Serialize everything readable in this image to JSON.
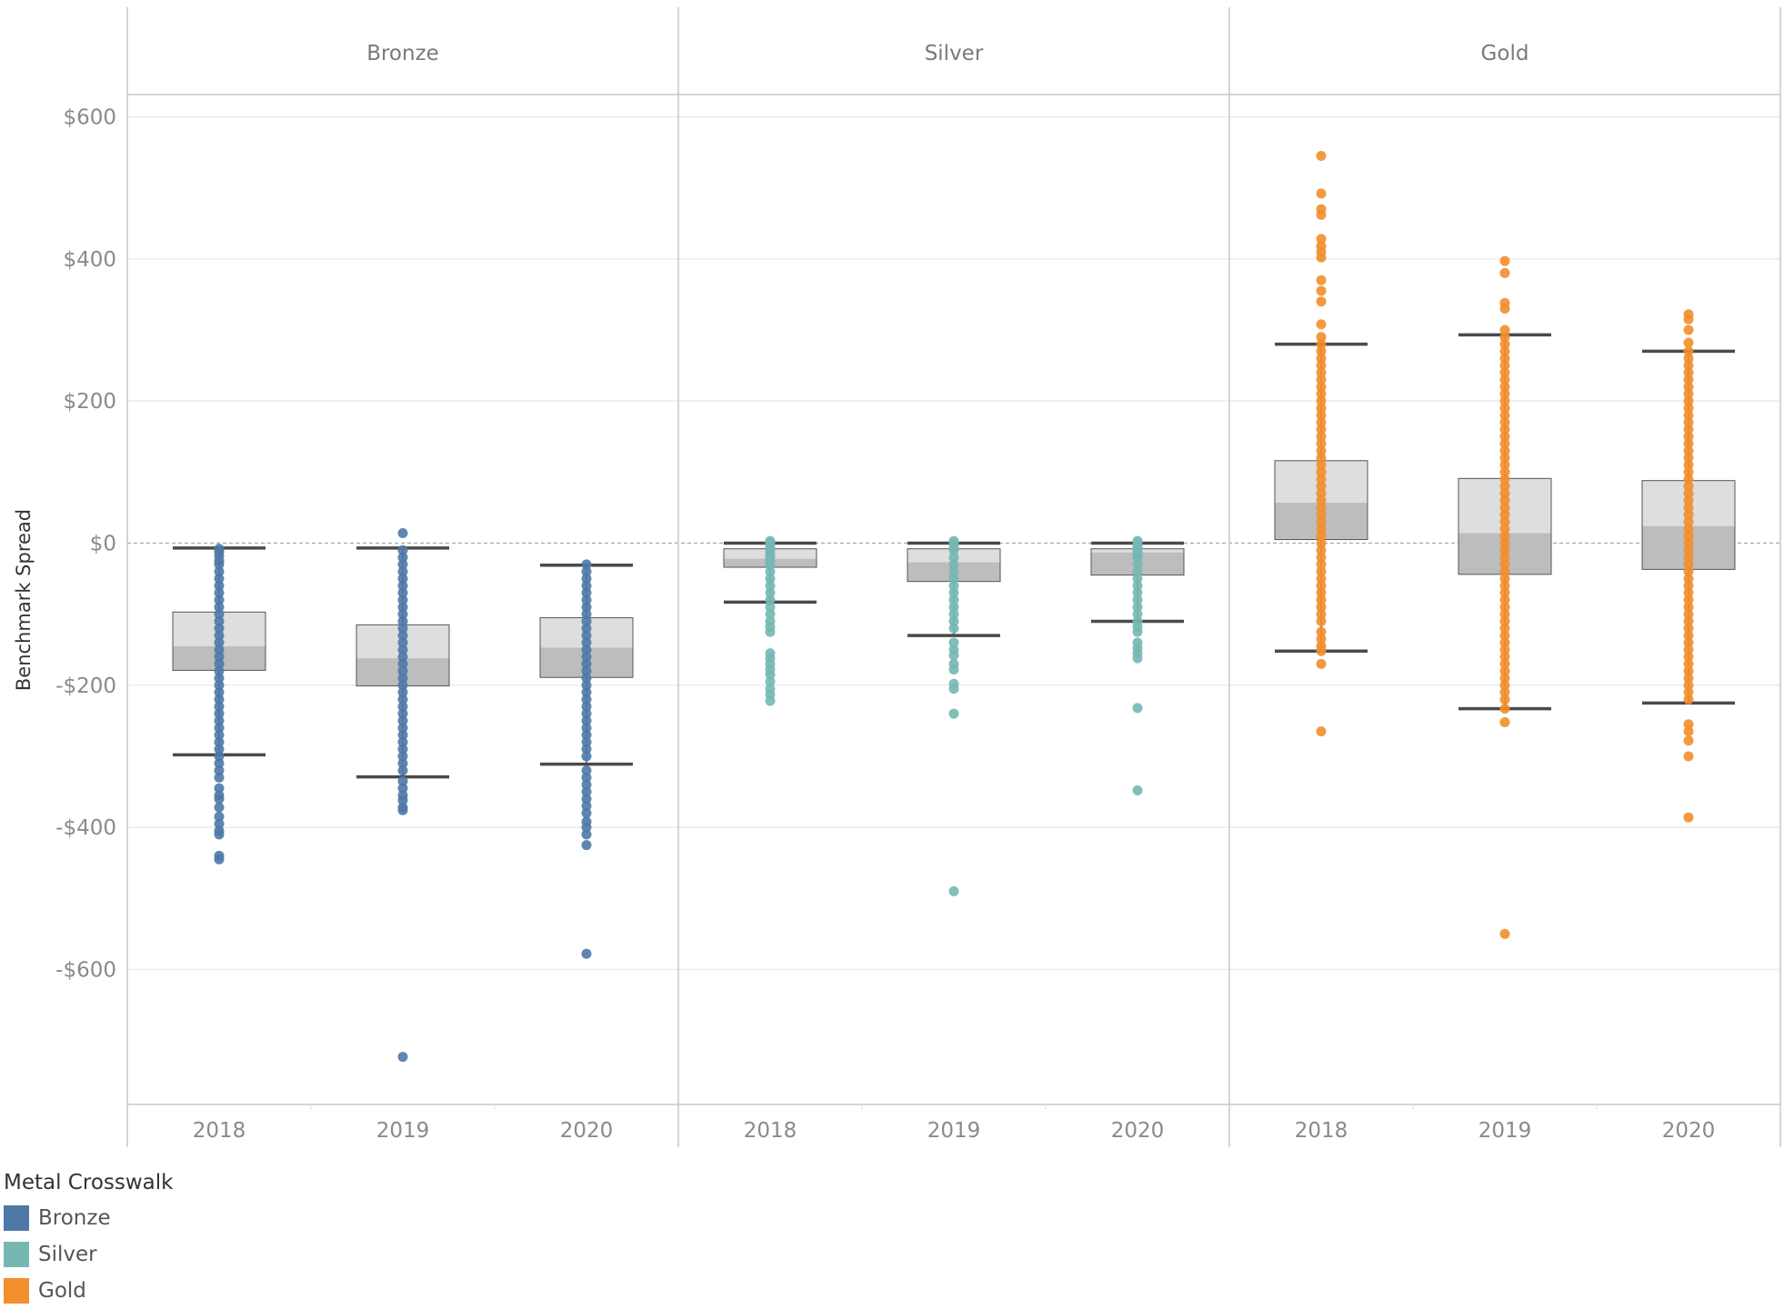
{
  "chart_data": {
    "type": "box",
    "ylabel": "Benchmark Spread",
    "ylim": [
      -790,
      630
    ],
    "y_ticks": [
      {
        "value": 600,
        "label": "$600"
      },
      {
        "value": 400,
        "label": "$400"
      },
      {
        "value": 200,
        "label": "$200"
      },
      {
        "value": 0,
        "label": "$0"
      },
      {
        "value": -200,
        "label": "-$200"
      },
      {
        "value": -400,
        "label": "-$400"
      },
      {
        "value": -600,
        "label": "-$600"
      }
    ],
    "grid": true,
    "reference_line": 0,
    "legend": {
      "title": "Metal Crosswalk",
      "position": "bottom-left",
      "items": [
        {
          "label": "Bronze",
          "color": "#4e79a7"
        },
        {
          "label": "Silver",
          "color": "#76b7b2"
        },
        {
          "label": "Gold",
          "color": "#f28e2b"
        }
      ]
    },
    "panels": [
      {
        "title": "Bronze",
        "color": "#4e79a7",
        "categories": [
          "2018",
          "2019",
          "2020"
        ],
        "boxes": [
          {
            "whisker_high": -7,
            "q3": -97,
            "median": -145,
            "q1": -179,
            "whisker_low": -298,
            "points": [
              -8,
              -12,
              -18,
              -25,
              -30,
              -40,
              -50,
              -60,
              -70,
              -80,
              -90,
              -100,
              -110,
              -120,
              -130,
              -140,
              -150,
              -160,
              -170,
              -180,
              -190,
              -200,
              -210,
              -220,
              -230,
              -240,
              -250,
              -260,
              -270,
              -280,
              -290,
              -300,
              -310,
              -320,
              -330,
              -345,
              -355,
              -360,
              -372,
              -385,
              -395,
              -405,
              -410,
              -440,
              -445
            ]
          },
          {
            "whisker_high": -7,
            "q3": -115,
            "median": -162,
            "q1": -201,
            "whisker_low": -329,
            "points": [
              14,
              -10,
              -20,
              -30,
              -40,
              -50,
              -60,
              -70,
              -80,
              -90,
              -100,
              -110,
              -120,
              -130,
              -140,
              -150,
              -160,
              -170,
              -180,
              -190,
              -200,
              -210,
              -220,
              -230,
              -240,
              -250,
              -260,
              -270,
              -280,
              -290,
              -300,
              -310,
              -320,
              -335,
              -345,
              -355,
              -362,
              -372,
              -376,
              -723
            ]
          },
          {
            "whisker_high": -31,
            "q3": -105,
            "median": -147,
            "q1": -189,
            "whisker_low": -311,
            "points": [
              -30,
              -40,
              -50,
              -60,
              -70,
              -80,
              -90,
              -100,
              -110,
              -120,
              -130,
              -140,
              -150,
              -160,
              -170,
              -180,
              -190,
              -200,
              -210,
              -220,
              -230,
              -240,
              -250,
              -260,
              -270,
              -280,
              -290,
              -300,
              -320,
              -330,
              -340,
              -350,
              -360,
              -370,
              -380,
              -392,
              -400,
              -410,
              -425,
              -578
            ]
          }
        ]
      },
      {
        "title": "Silver",
        "color": "#76b7b2",
        "categories": [
          "2018",
          "2019",
          "2020"
        ],
        "boxes": [
          {
            "whisker_high": 0,
            "q3": -8,
            "median": -22,
            "q1": -34,
            "whisker_low": -83,
            "points": [
              3,
              0,
              -5,
              -10,
              -15,
              -20,
              -25,
              -30,
              -40,
              -50,
              -60,
              -70,
              -80,
              -90,
              -100,
              -110,
              -118,
              -125,
              -155,
              -162,
              -170,
              -178,
              -185,
              -195,
              -205,
              -213,
              -222
            ]
          },
          {
            "whisker_high": 0,
            "q3": -8,
            "median": -27,
            "q1": -54,
            "whisker_low": -130,
            "points": [
              3,
              0,
              -5,
              -10,
              -20,
              -30,
              -40,
              -50,
              -60,
              -70,
              -80,
              -90,
              -100,
              -110,
              -120,
              -140,
              -150,
              -158,
              -170,
              -178,
              -198,
              -205,
              -240,
              -490
            ]
          },
          {
            "whisker_high": 0,
            "q3": -8,
            "median": -13,
            "q1": -45,
            "whisker_low": -110,
            "points": [
              3,
              0,
              -5,
              -10,
              -15,
              -20,
              -30,
              -40,
              -50,
              -60,
              -70,
              -80,
              -90,
              -100,
              -110,
              -118,
              -125,
              -140,
              -148,
              -155,
              -162,
              -232,
              -348
            ]
          }
        ]
      },
      {
        "title": "Gold",
        "color": "#f28e2b",
        "categories": [
          "2018",
          "2019",
          "2020"
        ],
        "boxes": [
          {
            "whisker_high": 280,
            "q3": 116,
            "median": 57,
            "q1": 5,
            "whisker_low": -152,
            "points": [
              545,
              492,
              470,
              462,
              428,
              418,
              410,
              402,
              370,
              355,
              340,
              308,
              290,
              280,
              270,
              260,
              250,
              240,
              230,
              220,
              210,
              200,
              190,
              180,
              170,
              160,
              150,
              140,
              130,
              120,
              110,
              100,
              90,
              80,
              70,
              60,
              50,
              40,
              30,
              20,
              10,
              0,
              -10,
              -20,
              -30,
              -40,
              -50,
              -60,
              -70,
              -80,
              -90,
              -100,
              -110,
              -125,
              -135,
              -145,
              -152,
              -170,
              -265
            ]
          },
          {
            "whisker_high": 293,
            "q3": 91,
            "median": 14,
            "q1": -44,
            "whisker_low": -233,
            "points": [
              397,
              380,
              338,
              330,
              300,
              290,
              280,
              270,
              260,
              250,
              240,
              230,
              220,
              210,
              200,
              190,
              180,
              170,
              160,
              150,
              140,
              130,
              120,
              110,
              100,
              90,
              80,
              70,
              60,
              50,
              40,
              30,
              20,
              10,
              0,
              -10,
              -20,
              -30,
              -40,
              -50,
              -60,
              -70,
              -80,
              -90,
              -100,
              -110,
              -120,
              -130,
              -140,
              -150,
              -160,
              -170,
              -180,
              -190,
              -200,
              -210,
              -220,
              -233,
              -252,
              -550
            ]
          },
          {
            "whisker_high": 270,
            "q3": 88,
            "median": 24,
            "q1": -37,
            "whisker_low": -225,
            "points": [
              322,
              315,
              300,
              282,
              270,
              260,
              250,
              240,
              230,
              220,
              210,
              200,
              190,
              180,
              170,
              160,
              150,
              140,
              130,
              120,
              110,
              100,
              90,
              80,
              70,
              60,
              50,
              40,
              30,
              20,
              10,
              0,
              -10,
              -20,
              -30,
              -40,
              -50,
              -60,
              -70,
              -80,
              -90,
              -100,
              -110,
              -120,
              -130,
              -140,
              -150,
              -160,
              -170,
              -180,
              -190,
              -200,
              -210,
              -220,
              -255,
              -265,
              -278,
              -300,
              -386
            ]
          }
        ]
      }
    ]
  }
}
